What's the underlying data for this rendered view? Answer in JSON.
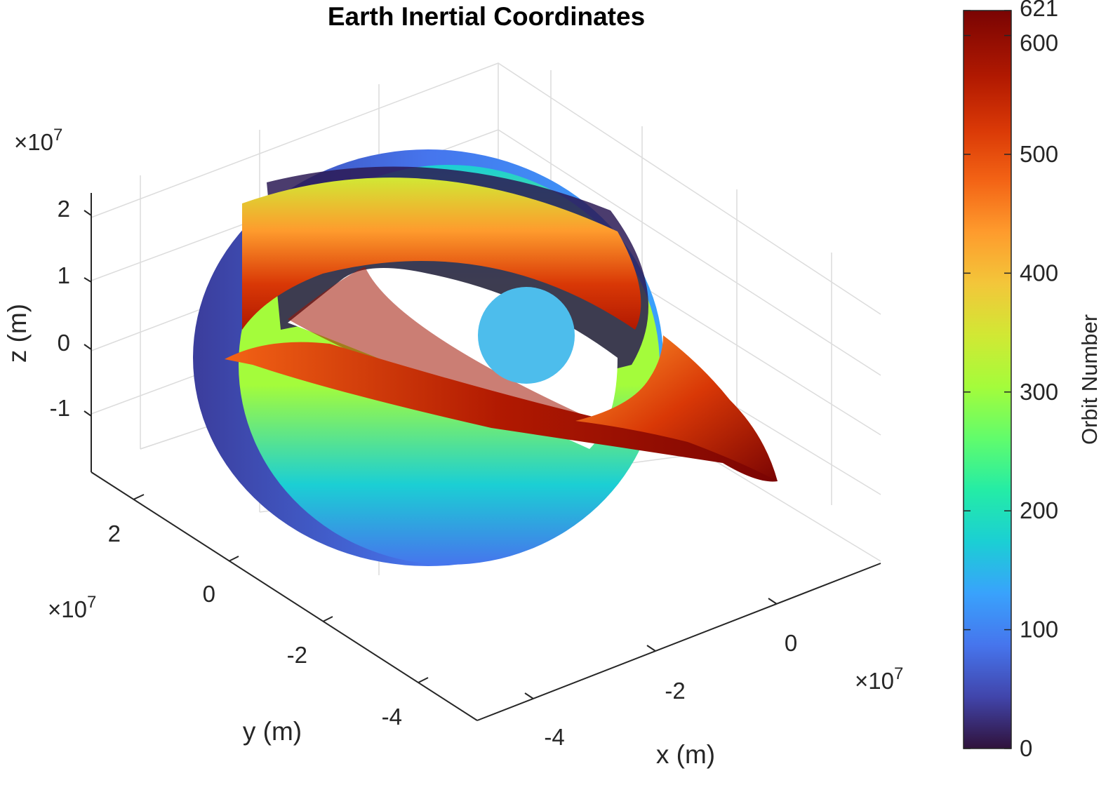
{
  "chart_data": {
    "type": "surface3d",
    "title": "Earth Inertial Coordinates",
    "xlabel": "x (m)",
    "ylabel": "y (m)",
    "zlabel": "z (m)",
    "x_exponent": "×10^7",
    "y_exponent": "×10^7",
    "z_exponent": "×10^7",
    "x_ticks": [
      "-4",
      "-2",
      "0"
    ],
    "y_ticks": [
      "2",
      "0",
      "-2",
      "-4"
    ],
    "z_ticks": [
      "2",
      "1",
      "0",
      "-1"
    ],
    "grid": true,
    "colormap": "turbo",
    "colorbar": {
      "label": "Orbit Number",
      "ticks": [
        "0",
        "100",
        "200",
        "300",
        "400",
        "500",
        "600",
        "621"
      ],
      "tick_values": [
        0,
        100,
        200,
        300,
        400,
        500,
        600,
        621
      ],
      "range": [
        0,
        621
      ],
      "placement": "right"
    },
    "earth_color": "#4dbdec",
    "series": [
      {
        "orbit_range": [
          0,
          621
        ]
      }
    ]
  }
}
